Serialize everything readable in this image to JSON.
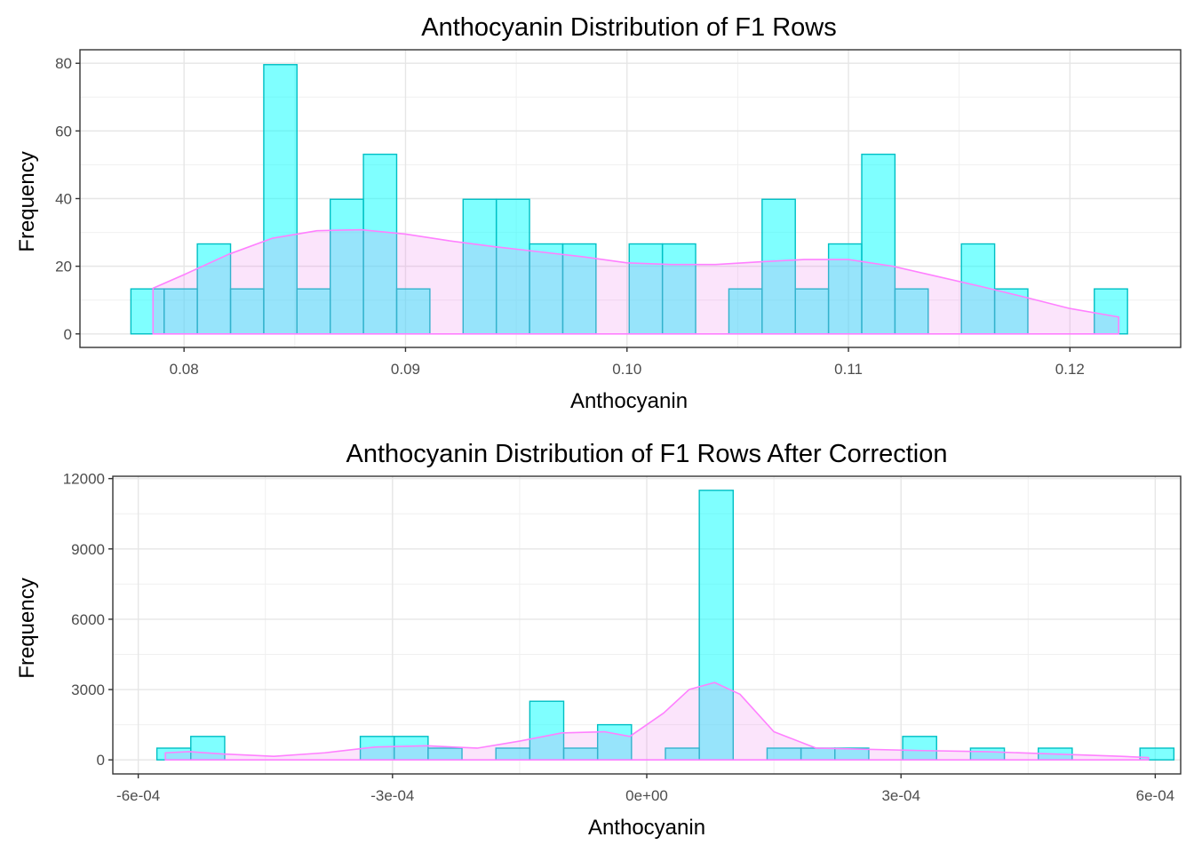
{
  "chart_data": [
    {
      "type": "histogram",
      "title": "Anthocyanin Distribution of F1 Rows",
      "xlabel": "Anthocyanin",
      "ylabel": "Frequency",
      "xlim": [
        0.0753,
        0.125
      ],
      "ylim": [
        -4,
        84
      ],
      "x_ticks": [
        0.08,
        0.09,
        0.1,
        0.11,
        0.12
      ],
      "x_tick_labels": [
        "0.08",
        "0.09",
        "0.10",
        "0.11",
        "0.12"
      ],
      "y_ticks": [
        0,
        20,
        40,
        60,
        80
      ],
      "y_tick_labels": [
        "0",
        "20",
        "40",
        "60",
        "80"
      ],
      "grid": true,
      "histogram": {
        "fill": "#00FFFF",
        "fill_opacity": 0.5,
        "stroke": "#00BFC4",
        "bins": [
          {
            "x0": 0.0776,
            "x1": 0.0791,
            "count": 13.3
          },
          {
            "x0": 0.0791,
            "x1": 0.0806,
            "count": 13.3
          },
          {
            "x0": 0.0806,
            "x1": 0.0821,
            "count": 26.6
          },
          {
            "x0": 0.0821,
            "x1": 0.0836,
            "count": 13.3
          },
          {
            "x0": 0.0836,
            "x1": 0.0851,
            "count": 79.6
          },
          {
            "x0": 0.0851,
            "x1": 0.0866,
            "count": 13.3
          },
          {
            "x0": 0.0866,
            "x1": 0.0881,
            "count": 39.8
          },
          {
            "x0": 0.0881,
            "x1": 0.0896,
            "count": 53.1
          },
          {
            "x0": 0.0896,
            "x1": 0.0911,
            "count": 13.3
          },
          {
            "x0": 0.0926,
            "x1": 0.0941,
            "count": 39.8
          },
          {
            "x0": 0.0941,
            "x1": 0.0956,
            "count": 39.8
          },
          {
            "x0": 0.0956,
            "x1": 0.0971,
            "count": 26.6
          },
          {
            "x0": 0.0971,
            "x1": 0.0986,
            "count": 26.6
          },
          {
            "x0": 0.1001,
            "x1": 0.1016,
            "count": 26.6
          },
          {
            "x0": 0.1016,
            "x1": 0.1031,
            "count": 26.6
          },
          {
            "x0": 0.1046,
            "x1": 0.1061,
            "count": 13.3
          },
          {
            "x0": 0.1061,
            "x1": 0.1076,
            "count": 39.8
          },
          {
            "x0": 0.1076,
            "x1": 0.1091,
            "count": 13.3
          },
          {
            "x0": 0.1091,
            "x1": 0.1106,
            "count": 26.6
          },
          {
            "x0": 0.1106,
            "x1": 0.1121,
            "count": 53.1
          },
          {
            "x0": 0.1121,
            "x1": 0.1136,
            "count": 13.3
          },
          {
            "x0": 0.1151,
            "x1": 0.1166,
            "count": 26.6
          },
          {
            "x0": 0.1166,
            "x1": 0.1181,
            "count": 13.3
          },
          {
            "x0": 0.1211,
            "x1": 0.1226,
            "count": 13.3
          }
        ]
      },
      "density": {
        "fill": "#EE82EE",
        "fill_opacity": 0.22,
        "stroke": "#FF80FF",
        "x": [
          0.0786,
          0.08,
          0.082,
          0.084,
          0.086,
          0.088,
          0.09,
          0.092,
          0.094,
          0.096,
          0.098,
          0.1,
          0.102,
          0.104,
          0.106,
          0.108,
          0.11,
          0.112,
          0.114,
          0.116,
          0.118,
          0.12,
          0.1222
        ],
        "y": [
          13.5,
          17.5,
          23.5,
          28.3,
          30.5,
          30.8,
          29.5,
          27.5,
          25.8,
          24.3,
          22.8,
          21.0,
          20.5,
          20.5,
          21.3,
          22.0,
          22.0,
          20.0,
          17.0,
          14.0,
          10.8,
          7.5,
          5.0
        ]
      }
    },
    {
      "type": "histogram",
      "title": "Anthocyanin Distribution of F1 Rows After Correction",
      "xlabel": "Anthocyanin",
      "ylabel": "Frequency",
      "xlim": [
        -0.00063,
        0.00063
      ],
      "ylim": [
        -600,
        12100
      ],
      "x_ticks": [
        -0.0006,
        -0.0003,
        0.0,
        0.0003,
        0.0006
      ],
      "x_tick_labels": [
        "-6e-04",
        "-3e-04",
        "0e+00",
        "3e-04",
        "6e-04"
      ],
      "y_ticks": [
        0,
        3000,
        6000,
        9000,
        12000
      ],
      "y_tick_labels": [
        "0",
        "3000",
        "6000",
        "9000",
        "12000"
      ],
      "grid": true,
      "histogram": {
        "fill": "#00FFFF",
        "fill_opacity": 0.5,
        "stroke": "#00BFC4",
        "bins": [
          {
            "x0": -0.000578,
            "x1": -0.000538,
            "count": 500
          },
          {
            "x0": -0.000538,
            "x1": -0.000498,
            "count": 1000
          },
          {
            "x0": -0.000338,
            "x1": -0.000298,
            "count": 1000
          },
          {
            "x0": -0.000298,
            "x1": -0.000258,
            "count": 1000
          },
          {
            "x0": -0.000258,
            "x1": -0.000218,
            "count": 500
          },
          {
            "x0": -0.000178,
            "x1": -0.000138,
            "count": 500
          },
          {
            "x0": -0.000138,
            "x1": -9.8e-05,
            "count": 2500
          },
          {
            "x0": -9.8e-05,
            "x1": -5.8e-05,
            "count": 500
          },
          {
            "x0": -5.8e-05,
            "x1": -1.8e-05,
            "count": 1500
          },
          {
            "x0": 2.2e-05,
            "x1": 6.2e-05,
            "count": 500
          },
          {
            "x0": 6.2e-05,
            "x1": 0.000102,
            "count": 11500
          },
          {
            "x0": 0.000142,
            "x1": 0.000182,
            "count": 500
          },
          {
            "x0": 0.000182,
            "x1": 0.000222,
            "count": 500
          },
          {
            "x0": 0.000222,
            "x1": 0.000262,
            "count": 500
          },
          {
            "x0": 0.000302,
            "x1": 0.000342,
            "count": 1000
          },
          {
            "x0": 0.000382,
            "x1": 0.000422,
            "count": 500
          },
          {
            "x0": 0.000462,
            "x1": 0.000502,
            "count": 500
          },
          {
            "x0": 0.000582,
            "x1": 0.000622,
            "count": 500
          }
        ]
      },
      "density": {
        "fill": "#EE82EE",
        "fill_opacity": 0.22,
        "stroke": "#FF80FF",
        "x": [
          -0.000568,
          -0.00054,
          -0.0005,
          -0.00044,
          -0.00038,
          -0.00032,
          -0.00026,
          -0.0002,
          -0.00015,
          -0.0001,
          -5e-05,
          -2e-05,
          2e-05,
          5e-05,
          8e-05,
          0.00011,
          0.00015,
          0.0002,
          0.00026,
          0.00032,
          0.0004,
          0.00048,
          0.00056,
          0.000592
        ],
        "y": [
          300,
          350,
          250,
          150,
          300,
          550,
          600,
          500,
          800,
          1150,
          1200,
          1000,
          2000,
          3000,
          3300,
          2800,
          1200,
          500,
          450,
          400,
          350,
          250,
          150,
          100
        ]
      }
    }
  ]
}
